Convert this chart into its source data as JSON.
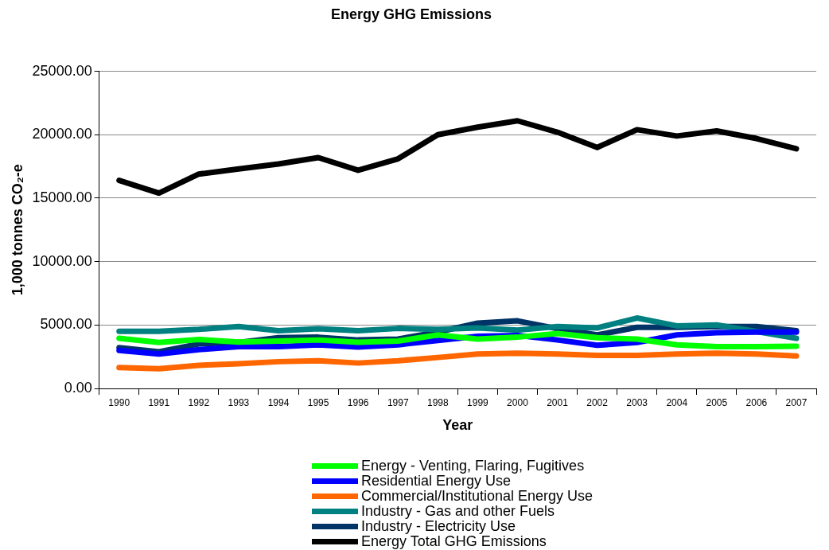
{
  "chart_data": {
    "type": "line",
    "title": "Energy GHG Emissions",
    "xlabel": "Year",
    "ylabel": "1,000 tonnes CO₂-e",
    "categories": [
      "1990",
      "1991",
      "1992",
      "1993",
      "1994",
      "1995",
      "1996",
      "1997",
      "1998",
      "1999",
      "2000",
      "2001",
      "2002",
      "2003",
      "2004",
      "2005",
      "2006",
      "2007"
    ],
    "series": [
      {
        "name": "Energy - Venting, Flaring, Fugitives",
        "color": "#00ff00",
        "values": [
          3950,
          3620,
          3860,
          3660,
          3730,
          3820,
          3640,
          3730,
          4220,
          3890,
          4040,
          4330,
          4000,
          3890,
          3440,
          3290,
          3290,
          3330
        ]
      },
      {
        "name": "Residential Energy Use",
        "color": "#0000ff",
        "values": [
          3000,
          2710,
          3060,
          3290,
          3290,
          3440,
          3270,
          3440,
          3780,
          4110,
          4180,
          3820,
          3400,
          3620,
          4220,
          4400,
          4440,
          4440
        ]
      },
      {
        "name": "Commercial/Institutional Energy Use",
        "color": "#ff6600",
        "values": [
          1640,
          1550,
          1820,
          1950,
          2110,
          2180,
          2000,
          2180,
          2440,
          2710,
          2780,
          2710,
          2600,
          2600,
          2710,
          2780,
          2710,
          2550
        ]
      },
      {
        "name": "Industry - Gas and other Fuels",
        "color": "#008080",
        "values": [
          4510,
          4510,
          4660,
          4880,
          4550,
          4700,
          4550,
          4730,
          4660,
          4770,
          4600,
          4880,
          4770,
          5550,
          4930,
          5000,
          4490,
          3950
        ]
      },
      {
        "name": "Industry - Electricity Use",
        "color": "#003366",
        "values": [
          3220,
          2890,
          3510,
          3620,
          4000,
          4040,
          3820,
          3890,
          4440,
          5150,
          5330,
          4710,
          4220,
          4820,
          4820,
          4880,
          4880,
          4550
        ]
      },
      {
        "name": "Energy Total GHG Emissions",
        "color": "#000000",
        "values": [
          16400,
          15400,
          16900,
          17300,
          17700,
          18200,
          17200,
          18100,
          20000,
          20600,
          21100,
          20200,
          19000,
          20400,
          19900,
          20300,
          19700,
          18900
        ]
      }
    ],
    "ylim": [
      0,
      25000
    ],
    "yticks": [
      {
        "value": 0,
        "label": "0.00"
      },
      {
        "value": 5000,
        "label": "5000.00"
      },
      {
        "value": 10000,
        "label": "10000.00"
      },
      {
        "value": 15000,
        "label": "15000.00"
      },
      {
        "value": 20000,
        "label": "20000.00"
      },
      {
        "value": 25000,
        "label": "25000.00"
      }
    ],
    "grid": "y",
    "legend": "bottom",
    "marker": "none",
    "line_style": "solid"
  }
}
